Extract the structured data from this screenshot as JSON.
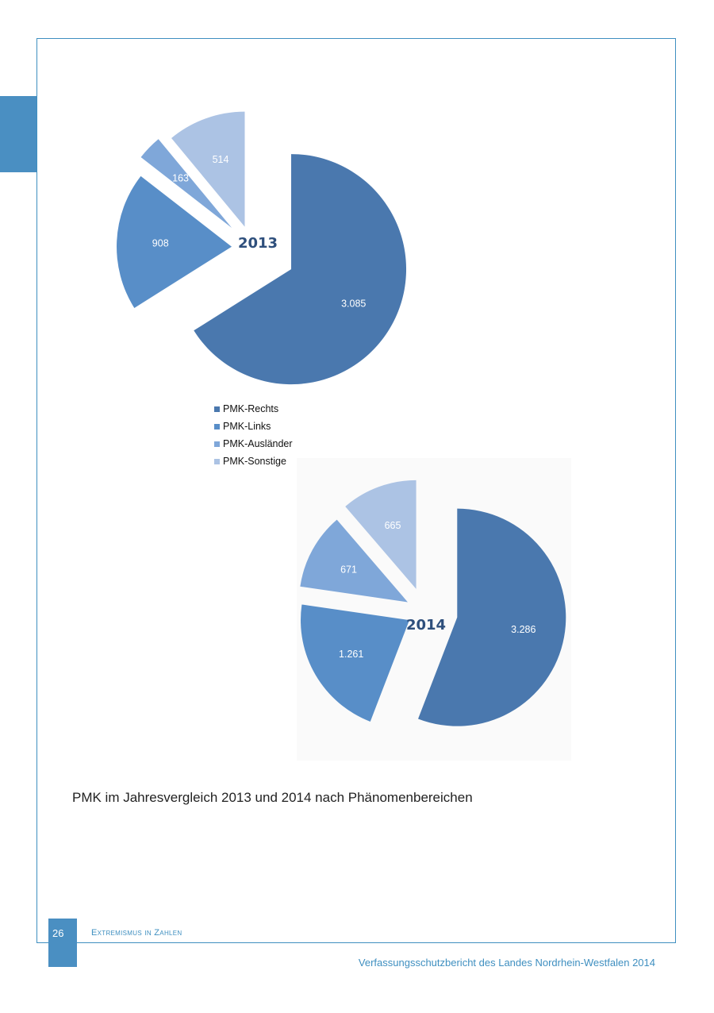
{
  "chart_data": [
    {
      "type": "pie",
      "title": "2013",
      "categories": [
        "PMK-Rechts",
        "PMK-Links",
        "PMK-Ausländer",
        "PMK-Sonstige"
      ],
      "values": [
        3085,
        908,
        163,
        514
      ],
      "value_labels": [
        "3.085",
        "908",
        "163",
        "514"
      ],
      "colors": [
        "#4a78ae",
        "#588ec8",
        "#7fa7d9",
        "#acc3e4"
      ],
      "exploded": true,
      "legend": "bottom"
    },
    {
      "type": "pie",
      "title": "2014",
      "categories": [
        "PMK-Rechts",
        "PMK-Links",
        "PMK-Ausländer",
        "PMK-Sonstige"
      ],
      "values": [
        3286,
        1261,
        671,
        665
      ],
      "value_labels": [
        "3.286",
        "1.261",
        "671",
        "665"
      ],
      "colors": [
        "#4a78ae",
        "#588ec8",
        "#7fa7d9",
        "#acc3e4"
      ],
      "exploded": true
    }
  ],
  "legend": {
    "items": [
      {
        "label": "PMK-Rechts",
        "color": "#4a78ae"
      },
      {
        "label": "PMK-Links",
        "color": "#588ec8"
      },
      {
        "label": "PMK-Ausländer",
        "color": "#7fa7d9"
      },
      {
        "label": "PMK-Sonstige",
        "color": "#acc3e4"
      }
    ]
  },
  "caption": "PMK im Jahresvergleich 2013 und 2014 nach Phänomenbereichen",
  "footer": {
    "page_number": "26",
    "section": "Extremismus in Zahlen",
    "publication": "Verfassungsschutzbericht des Landes Nordrhein-Westfalen 2014"
  },
  "colors": {
    "accent": "#4a8fc2",
    "year_label": "#2e4f7c"
  }
}
